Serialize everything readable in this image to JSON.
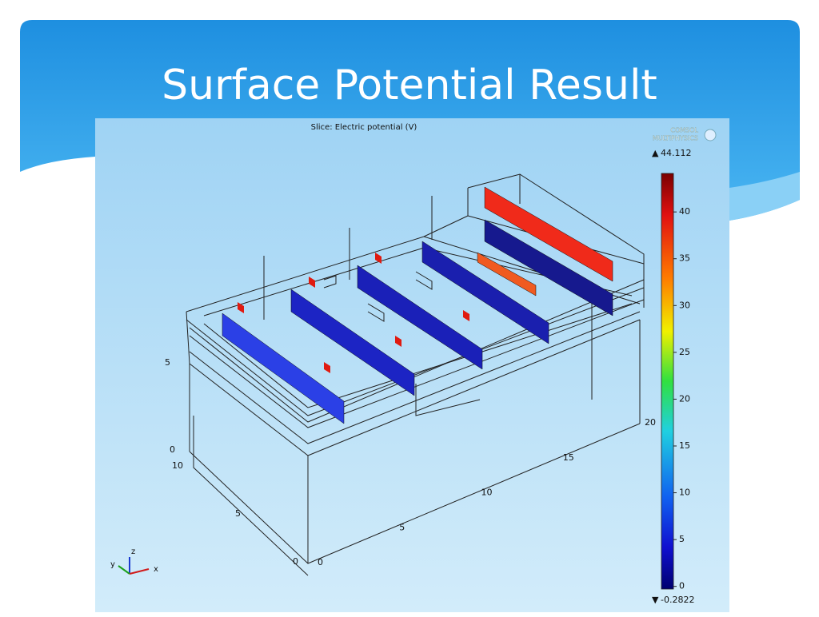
{
  "header": {
    "title": "Surface Potential Result"
  },
  "plot": {
    "title": "Slice: Electric potential (V)",
    "logo": [
      "COMSOL",
      "MULTIPHYSICS"
    ],
    "colorbar": {
      "max": 44.112,
      "min": -0.2822,
      "ticks": [
        0,
        5,
        10,
        15,
        20,
        25,
        30,
        35,
        40
      ]
    },
    "axes": {
      "z_ticks": [
        0,
        5
      ],
      "y_ticks": [
        0,
        5,
        10
      ],
      "x_ticks": [
        0,
        5,
        10,
        15,
        20
      ]
    },
    "triad": [
      "x",
      "y",
      "z"
    ]
  }
}
